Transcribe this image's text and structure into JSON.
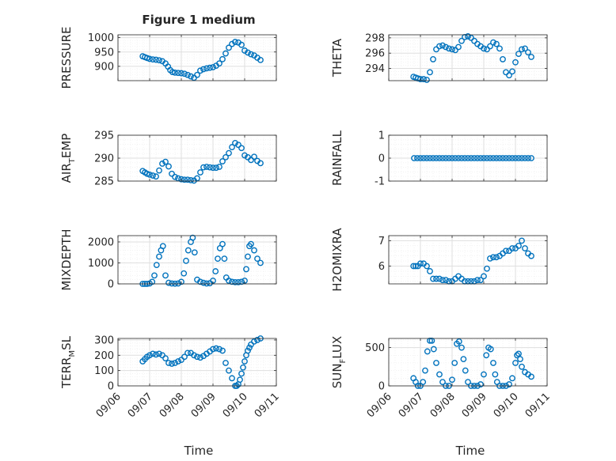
{
  "figure": {
    "title": "Figure 1 medium",
    "marker_color": "#0072BD",
    "grid_color": "#dfdfdf",
    "x_tick_labels": [
      "09/06",
      "09/07",
      "09/08",
      "09/09",
      "09/10",
      "09/11"
    ],
    "x_axis_label": "Time"
  },
  "chart_data": [
    {
      "type": "scatter",
      "ylabel": "PRESSURE",
      "xlim": [
        0,
        5
      ],
      "ylim": [
        850,
        1010
      ],
      "yticks": [
        900,
        950,
        1000
      ],
      "yticklabels": [
        "900",
        "950",
        "1000"
      ],
      "grid": true,
      "minor_grid": true,
      "x": [
        0.78,
        0.85,
        0.92,
        1.0,
        1.1,
        1.2,
        1.3,
        1.4,
        1.5,
        1.58,
        1.65,
        1.72,
        1.8,
        1.9,
        2.0,
        2.1,
        2.2,
        2.3,
        2.4,
        2.5,
        2.6,
        2.7,
        2.8,
        2.9,
        3.0,
        3.1,
        3.2,
        3.3,
        3.4,
        3.5,
        3.6,
        3.7,
        3.8,
        3.9,
        4.0,
        4.1,
        4.2,
        4.3,
        4.4,
        4.5
      ],
      "y": [
        935,
        932,
        929,
        926,
        924,
        923,
        921,
        918,
        910,
        899,
        887,
        880,
        878,
        877,
        876,
        874,
        870,
        865,
        860,
        870,
        885,
        890,
        893,
        895,
        897,
        902,
        910,
        925,
        945,
        965,
        978,
        985,
        983,
        975,
        955,
        948,
        942,
        938,
        930,
        922
      ]
    },
    {
      "type": "scatter",
      "ylabel": "THETA",
      "xlim": [
        0,
        5
      ],
      "ylim": [
        292.4,
        298.4
      ],
      "yticks": [
        294,
        296,
        298
      ],
      "yticklabels": [
        "294",
        "296",
        "298"
      ],
      "grid": true,
      "minor_grid": true,
      "x": [
        0.78,
        0.85,
        0.92,
        1.0,
        1.1,
        1.2,
        1.3,
        1.4,
        1.5,
        1.6,
        1.7,
        1.8,
        1.9,
        2.0,
        2.1,
        2.2,
        2.3,
        2.4,
        2.5,
        2.6,
        2.7,
        2.8,
        2.9,
        3.0,
        3.1,
        3.2,
        3.3,
        3.4,
        3.5,
        3.6,
        3.7,
        3.8,
        3.9,
        4.0,
        4.1,
        4.2,
        4.3,
        4.4,
        4.5
      ],
      "y": [
        292.9,
        292.8,
        292.7,
        292.6,
        292.6,
        292.5,
        293.5,
        295.2,
        296.5,
        296.9,
        297.0,
        296.8,
        296.6,
        296.5,
        296.4,
        296.8,
        297.6,
        298.1,
        298.2,
        298.0,
        297.6,
        297.2,
        296.9,
        296.6,
        296.5,
        296.9,
        297.4,
        297.2,
        296.6,
        295.2,
        293.5,
        293.1,
        293.6,
        294.8,
        295.9,
        296.5,
        296.6,
        296.1,
        295.5
      ]
    },
    {
      "type": "scatter",
      "ylabel": "AIR_TEMP",
      "ylabel_main": "AIR",
      "ylabel_sub": "T",
      "ylabel_rest": "EMP",
      "xlim": [
        0,
        5
      ],
      "ylim": [
        285,
        295
      ],
      "yticks": [
        285,
        290,
        295
      ],
      "yticklabels": [
        "285",
        "290",
        "295"
      ],
      "grid": true,
      "minor_grid": true,
      "x": [
        0.78,
        0.85,
        0.92,
        1.0,
        1.1,
        1.2,
        1.3,
        1.4,
        1.5,
        1.6,
        1.7,
        1.8,
        1.9,
        2.0,
        2.1,
        2.2,
        2.3,
        2.4,
        2.5,
        2.6,
        2.7,
        2.8,
        2.9,
        3.0,
        3.1,
        3.2,
        3.3,
        3.4,
        3.5,
        3.6,
        3.7,
        3.8,
        3.9,
        4.0,
        4.1,
        4.2,
        4.3,
        4.4,
        4.5
      ],
      "y": [
        287.2,
        286.9,
        286.6,
        286.4,
        286.2,
        286.0,
        287.3,
        288.8,
        289.2,
        288.2,
        286.6,
        285.9,
        285.6,
        285.4,
        285.3,
        285.3,
        285.2,
        285.1,
        285.6,
        286.9,
        288.0,
        288.1,
        288.0,
        287.9,
        287.9,
        288.1,
        289.3,
        290.2,
        291.1,
        292.4,
        293.3,
        292.9,
        292.2,
        290.6,
        290.2,
        289.6,
        290.3,
        289.4,
        288.9
      ]
    },
    {
      "type": "scatter",
      "ylabel": "RAINFALL",
      "xlim": [
        0,
        5
      ],
      "ylim": [
        -1,
        1
      ],
      "yticks": [
        -1,
        0,
        1
      ],
      "yticklabels": [
        "-1",
        "0",
        "1"
      ],
      "grid": true,
      "minor_grid": true,
      "x": [
        0.8,
        0.9,
        1.0,
        1.1,
        1.2,
        1.3,
        1.4,
        1.5,
        1.6,
        1.7,
        1.8,
        1.9,
        2.0,
        2.1,
        2.2,
        2.3,
        2.4,
        2.5,
        2.6,
        2.7,
        2.8,
        2.9,
        3.0,
        3.1,
        3.2,
        3.3,
        3.4,
        3.5,
        3.6,
        3.7,
        3.8,
        3.9,
        4.0,
        4.1,
        4.2,
        4.3,
        4.4,
        4.5
      ],
      "y": [
        0,
        0,
        0,
        0,
        0,
        0,
        0,
        0,
        0,
        0,
        0,
        0,
        0,
        0,
        0,
        0,
        0,
        0,
        0,
        0,
        0,
        0,
        0,
        0,
        0,
        0,
        0,
        0,
        0,
        0,
        0,
        0,
        0,
        0,
        0,
        0,
        0,
        0
      ]
    },
    {
      "type": "scatter",
      "ylabel": "MIXDEPTH",
      "xlim": [
        0,
        5
      ],
      "ylim": [
        0,
        2300
      ],
      "yticks": [
        0,
        1000,
        2000
      ],
      "yticklabels": [
        "0",
        "1000",
        "2000"
      ],
      "grid": true,
      "minor_grid": true,
      "x": [
        0.78,
        0.85,
        0.92,
        1.0,
        1.08,
        1.15,
        1.22,
        1.3,
        1.36,
        1.42,
        1.5,
        1.6,
        1.7,
        1.8,
        1.9,
        2.0,
        2.08,
        2.15,
        2.22,
        2.3,
        2.36,
        2.42,
        2.5,
        2.6,
        2.7,
        2.8,
        2.9,
        3.0,
        3.08,
        3.15,
        3.22,
        3.3,
        3.36,
        3.42,
        3.5,
        3.6,
        3.7,
        3.8,
        3.9,
        4.0,
        4.05,
        4.1,
        4.15,
        4.2,
        4.3,
        4.4,
        4.5
      ],
      "y": [
        0,
        0,
        0,
        20,
        100,
        400,
        900,
        1300,
        1600,
        1800,
        400,
        50,
        20,
        10,
        20,
        100,
        500,
        1100,
        1600,
        2000,
        2200,
        1500,
        200,
        100,
        50,
        20,
        30,
        150,
        600,
        1200,
        1700,
        1900,
        1200,
        300,
        150,
        100,
        80,
        80,
        100,
        150,
        700,
        1300,
        1800,
        1900,
        1600,
        1200,
        1000
      ]
    },
    {
      "type": "scatter",
      "ylabel": "H2OMIXRA",
      "xlim": [
        0,
        5
      ],
      "ylim": [
        5.3,
        7.2
      ],
      "yticks": [
        6,
        7
      ],
      "yticklabels": [
        "6",
        "7"
      ],
      "grid": true,
      "minor_grid": true,
      "x": [
        0.78,
        0.85,
        0.92,
        1.0,
        1.1,
        1.2,
        1.3,
        1.4,
        1.5,
        1.6,
        1.7,
        1.8,
        1.9,
        2.0,
        2.1,
        2.2,
        2.3,
        2.4,
        2.5,
        2.6,
        2.7,
        2.8,
        2.9,
        3.0,
        3.1,
        3.2,
        3.3,
        3.4,
        3.5,
        3.6,
        3.7,
        3.8,
        3.9,
        4.0,
        4.1,
        4.2,
        4.3,
        4.4,
        4.5
      ],
      "y": [
        6.0,
        6.0,
        6.0,
        6.1,
        6.1,
        6.0,
        5.8,
        5.5,
        5.5,
        5.5,
        5.45,
        5.45,
        5.4,
        5.4,
        5.5,
        5.6,
        5.5,
        5.4,
        5.4,
        5.4,
        5.4,
        5.45,
        5.45,
        5.6,
        5.9,
        6.3,
        6.35,
        6.35,
        6.4,
        6.5,
        6.6,
        6.6,
        6.7,
        6.7,
        6.8,
        7.0,
        6.7,
        6.5,
        6.4
      ]
    },
    {
      "type": "scatter",
      "ylabel": "TERR_MSL",
      "ylabel_main": "TERR",
      "ylabel_sub": "M",
      "ylabel_rest": "SL",
      "xlim": [
        0,
        5
      ],
      "ylim": [
        0,
        310
      ],
      "yticks": [
        0,
        100,
        200,
        300
      ],
      "yticklabels": [
        "0",
        "100",
        "200",
        "300"
      ],
      "grid": true,
      "minor_grid": true,
      "x": [
        0.78,
        0.85,
        0.92,
        1.0,
        1.1,
        1.2,
        1.3,
        1.4,
        1.5,
        1.6,
        1.7,
        1.8,
        1.9,
        2.0,
        2.1,
        2.2,
        2.3,
        2.4,
        2.5,
        2.6,
        2.7,
        2.8,
        2.9,
        3.0,
        3.1,
        3.2,
        3.3,
        3.4,
        3.5,
        3.6,
        3.7,
        3.75,
        3.8,
        3.85,
        3.9,
        3.95,
        4.0,
        4.05,
        4.1,
        4.15,
        4.2,
        4.3,
        4.4,
        4.5
      ],
      "y": [
        160,
        175,
        190,
        200,
        210,
        205,
        210,
        200,
        180,
        150,
        145,
        150,
        160,
        170,
        190,
        215,
        215,
        200,
        190,
        185,
        195,
        210,
        225,
        240,
        245,
        240,
        230,
        150,
        100,
        50,
        0,
        0,
        10,
        40,
        80,
        120,
        160,
        200,
        230,
        250,
        270,
        290,
        300,
        310
      ]
    },
    {
      "type": "scatter",
      "ylabel": "SUN_FLUX",
      "ylabel_main": "SUN",
      "ylabel_sub": "F",
      "ylabel_rest": "LUX",
      "xlim": [
        0,
        5
      ],
      "ylim": [
        0,
        620
      ],
      "yticks": [
        0,
        500
      ],
      "yticklabels": [
        "0",
        "500"
      ],
      "grid": true,
      "minor_grid": true,
      "x": [
        0.78,
        0.85,
        0.92,
        1.0,
        1.08,
        1.15,
        1.22,
        1.3,
        1.36,
        1.42,
        1.5,
        1.6,
        1.7,
        1.8,
        1.9,
        2.0,
        2.08,
        2.15,
        2.22,
        2.3,
        2.36,
        2.42,
        2.5,
        2.6,
        2.7,
        2.8,
        2.9,
        3.0,
        3.08,
        3.15,
        3.22,
        3.3,
        3.36,
        3.42,
        3.5,
        3.6,
        3.7,
        3.8,
        3.9,
        4.0,
        4.05,
        4.1,
        4.15,
        4.2,
        4.3,
        4.4,
        4.5
      ],
      "y": [
        100,
        50,
        0,
        0,
        50,
        200,
        450,
        590,
        590,
        480,
        300,
        150,
        50,
        0,
        0,
        80,
        300,
        550,
        580,
        500,
        350,
        200,
        50,
        0,
        0,
        0,
        20,
        150,
        400,
        500,
        480,
        300,
        150,
        50,
        0,
        0,
        0,
        20,
        100,
        300,
        400,
        420,
        350,
        250,
        180,
        150,
        120
      ]
    }
  ]
}
